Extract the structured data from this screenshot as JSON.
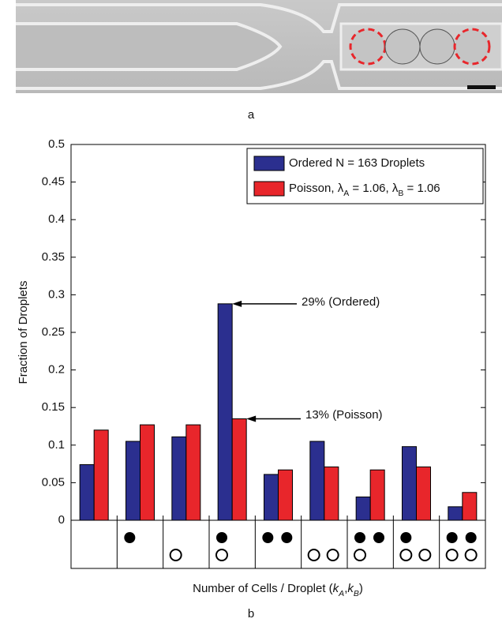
{
  "chart_data": {
    "type": "bar",
    "panel_labels": [
      "a",
      "b"
    ],
    "xlabel": "Number of Cells / Droplet (kA,kB)",
    "ylabel": "Fraction of Droplets",
    "categories": [
      null,
      null,
      null,
      null,
      null,
      null,
      null,
      null,
      null
    ],
    "category_cells": [
      [
        0,
        0
      ],
      [
        1,
        0
      ],
      [
        0,
        1
      ],
      [
        1,
        1
      ],
      [
        2,
        0
      ],
      [
        0,
        2
      ],
      [
        2,
        1
      ],
      [
        1,
        2
      ],
      [
        2,
        2
      ]
    ],
    "series": [
      {
        "name": "Ordered N = 163 Droplets",
        "color": "#2b2f8f",
        "values": [
          0.074,
          0.105,
          0.111,
          0.288,
          0.061,
          0.105,
          0.031,
          0.098,
          0.018
        ]
      },
      {
        "name": "Poisson, λA = 1.06, λB = 1.06",
        "color": "#e8262b",
        "values": [
          0.12,
          0.127,
          0.127,
          0.135,
          0.067,
          0.071,
          0.067,
          0.071,
          0.037
        ]
      }
    ],
    "annotations": [
      "29% (Ordered)",
      "13% (Poisson)"
    ],
    "ylim": [
      0,
      0.5
    ],
    "yticks": [
      0,
      0.05,
      0.1,
      0.15,
      0.2,
      0.25,
      0.3,
      0.35,
      0.4,
      0.45,
      0.5
    ],
    "legend": "upper right"
  }
}
